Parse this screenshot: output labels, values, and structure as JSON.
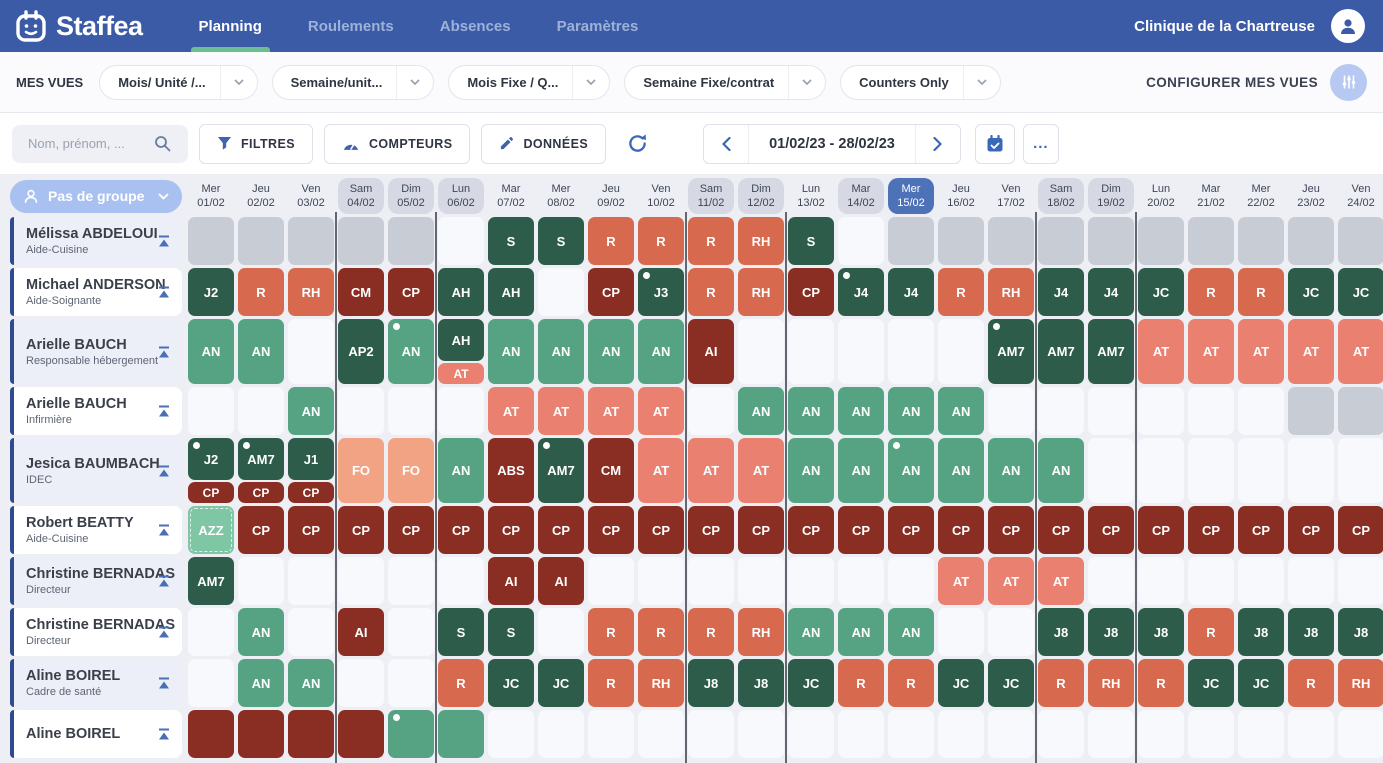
{
  "nav": {
    "brand": "Staffea",
    "items": [
      {
        "label": "Planning",
        "active": true
      },
      {
        "label": "Roulements",
        "active": false
      },
      {
        "label": "Absences",
        "active": false
      },
      {
        "label": "Paramètres",
        "active": false
      }
    ],
    "clinic": "Clinique de la Chartreuse"
  },
  "views_bar": {
    "label": "MES VUES",
    "views": [
      "Mois/ Unité /...",
      "Semaine/unit...",
      "Mois Fixe / Q...",
      "Semaine Fixe/contrat",
      "Counters Only"
    ],
    "configure_label": "CONFIGURER MES VUES"
  },
  "toolbar": {
    "search_placeholder": "Nom, prénom, ...",
    "filters_label": "FILTRES",
    "counters_label": "COMPTEURS",
    "data_label": "DONNÉES",
    "date_range": "01/02/23 - 28/02/23",
    "more_label": "..."
  },
  "group_selector": {
    "label": "Pas de groupe"
  },
  "colors": {
    "dg": "#2e5c4b",
    "mg": "#55a382",
    "lg": "#7fc6a4",
    "sal": "#d7694f",
    "lsal": "#e98070",
    "mar": "#8a2d22",
    "peach": "#f1a384",
    "gray": "#c8ccd5",
    "accent_blue": "#3b5ba7",
    "active_green": "#6cbe92",
    "today_blue": "#4e72b7"
  },
  "separators": [
    4,
    6,
    11,
    13,
    18,
    20
  ],
  "days": [
    {
      "d": "Mer",
      "n": "01/02"
    },
    {
      "d": "Jeu",
      "n": "02/02"
    },
    {
      "d": "Ven",
      "n": "03/02"
    },
    {
      "d": "Sam",
      "n": "04/02",
      "off": true
    },
    {
      "d": "Dim",
      "n": "05/02",
      "off": true
    },
    {
      "d": "Lun",
      "n": "06/02",
      "off": true
    },
    {
      "d": "Mar",
      "n": "07/02"
    },
    {
      "d": "Mer",
      "n": "08/02"
    },
    {
      "d": "Jeu",
      "n": "09/02"
    },
    {
      "d": "Ven",
      "n": "10/02"
    },
    {
      "d": "Sam",
      "n": "11/02",
      "off": true
    },
    {
      "d": "Dim",
      "n": "12/02",
      "off": true
    },
    {
      "d": "Lun",
      "n": "13/02"
    },
    {
      "d": "Mar",
      "n": "14/02",
      "off": true
    },
    {
      "d": "Mer",
      "n": "15/02",
      "today": true
    },
    {
      "d": "Jeu",
      "n": "16/02"
    },
    {
      "d": "Ven",
      "n": "17/02"
    },
    {
      "d": "Sam",
      "n": "18/02",
      "off": true
    },
    {
      "d": "Dim",
      "n": "19/02",
      "off": true
    },
    {
      "d": "Lun",
      "n": "20/02"
    },
    {
      "d": "Mar",
      "n": "21/02"
    },
    {
      "d": "Mer",
      "n": "22/02"
    },
    {
      "d": "Jeu",
      "n": "23/02"
    },
    {
      "d": "Ven",
      "n": "24/02"
    }
  ],
  "employees": [
    {
      "name": "Mélissa ABDELOUI",
      "role": "Aide-Cuisine",
      "tall": false,
      "cells": [
        {
          "k": "gray"
        },
        {
          "k": "gray"
        },
        {
          "k": "gray"
        },
        {
          "k": "gray"
        },
        {
          "k": "gray"
        },
        null,
        {
          "c": "S",
          "k": "dg"
        },
        {
          "c": "S",
          "k": "dg"
        },
        {
          "c": "R",
          "k": "sal"
        },
        {
          "c": "R",
          "k": "sal"
        },
        {
          "c": "R",
          "k": "sal"
        },
        {
          "c": "RH",
          "k": "sal"
        },
        {
          "c": "S",
          "k": "dg"
        },
        null,
        {
          "k": "gray"
        },
        {
          "k": "gray"
        },
        {
          "k": "gray"
        },
        {
          "k": "gray"
        },
        {
          "k": "gray"
        },
        {
          "k": "gray"
        },
        {
          "k": "gray"
        },
        {
          "k": "gray"
        },
        {
          "k": "gray"
        },
        {
          "k": "gray"
        }
      ]
    },
    {
      "name": "Michael ANDERSON",
      "role": "Aide-Soignante",
      "tall": false,
      "cells": [
        {
          "c": "J2",
          "k": "dg"
        },
        {
          "c": "R",
          "k": "sal"
        },
        {
          "c": "RH",
          "k": "sal"
        },
        {
          "c": "CM",
          "k": "mar"
        },
        {
          "c": "CP",
          "k": "mar"
        },
        {
          "c": "AH",
          "k": "dg"
        },
        {
          "c": "AH",
          "k": "dg"
        },
        null,
        {
          "c": "CP",
          "k": "mar"
        },
        {
          "c": "J3",
          "k": "dg",
          "dot": true
        },
        {
          "c": "R",
          "k": "sal"
        },
        {
          "c": "RH",
          "k": "sal"
        },
        {
          "c": "CP",
          "k": "mar"
        },
        {
          "c": "J4",
          "k": "dg",
          "dot": true
        },
        {
          "c": "J4",
          "k": "dg"
        },
        {
          "c": "R",
          "k": "sal"
        },
        {
          "c": "RH",
          "k": "sal"
        },
        {
          "c": "J4",
          "k": "dg"
        },
        {
          "c": "J4",
          "k": "dg"
        },
        {
          "c": "JC",
          "k": "dg"
        },
        {
          "c": "R",
          "k": "sal"
        },
        {
          "c": "R",
          "k": "sal"
        },
        {
          "c": "JC",
          "k": "dg"
        },
        {
          "c": "JC",
          "k": "dg"
        }
      ]
    },
    {
      "name": "Arielle BAUCH",
      "role": "Responsable hébergement",
      "tall": true,
      "cells": [
        {
          "c": "AN",
          "k": "mg"
        },
        {
          "c": "AN",
          "k": "mg"
        },
        null,
        {
          "c": "AP2",
          "k": "dg"
        },
        {
          "c": "AN",
          "k": "mg",
          "dot": true
        },
        {
          "c": "AH",
          "k": "dg",
          "sub": {
            "c": "AT",
            "k": "lsal"
          }
        },
        {
          "c": "AN",
          "k": "mg"
        },
        {
          "c": "AN",
          "k": "mg"
        },
        {
          "c": "AN",
          "k": "mg"
        },
        {
          "c": "AN",
          "k": "mg"
        },
        {
          "c": "AI",
          "k": "mar"
        },
        null,
        null,
        null,
        null,
        null,
        {
          "c": "AM7",
          "k": "dg",
          "dot": true
        },
        {
          "c": "AM7",
          "k": "dg"
        },
        {
          "c": "AM7",
          "k": "dg"
        },
        {
          "c": "AT",
          "k": "lsal"
        },
        {
          "c": "AT",
          "k": "lsal"
        },
        {
          "c": "AT",
          "k": "lsal"
        },
        {
          "c": "AT",
          "k": "lsal"
        },
        {
          "c": "AT",
          "k": "lsal"
        }
      ]
    },
    {
      "name": "Arielle BAUCH",
      "role": "Infirmière",
      "tall": false,
      "cells": [
        null,
        null,
        {
          "c": "AN",
          "k": "mg"
        },
        null,
        null,
        null,
        {
          "c": "AT",
          "k": "lsal"
        },
        {
          "c": "AT",
          "k": "lsal"
        },
        {
          "c": "AT",
          "k": "lsal"
        },
        {
          "c": "AT",
          "k": "lsal"
        },
        null,
        {
          "c": "AN",
          "k": "mg"
        },
        {
          "c": "AN",
          "k": "mg"
        },
        {
          "c": "AN",
          "k": "mg"
        },
        {
          "c": "AN",
          "k": "mg"
        },
        {
          "c": "AN",
          "k": "mg"
        },
        null,
        null,
        null,
        null,
        null,
        null,
        {
          "k": "gray"
        },
        {
          "k": "gray"
        }
      ]
    },
    {
      "name": "Jesica BAUMBACH",
      "role": "IDEC",
      "tall": true,
      "cells": [
        {
          "c": "J2",
          "k": "dg",
          "dot": true,
          "sub": {
            "c": "CP",
            "k": "mar"
          }
        },
        {
          "c": "AM7",
          "k": "dg",
          "dot": true,
          "sub": {
            "c": "CP",
            "k": "mar"
          }
        },
        {
          "c": "J1",
          "k": "dg",
          "sub": {
            "c": "CP",
            "k": "mar"
          }
        },
        {
          "c": "FO",
          "k": "peach"
        },
        {
          "c": "FO",
          "k": "peach"
        },
        {
          "c": "AN",
          "k": "mg"
        },
        {
          "c": "ABS",
          "k": "mar"
        },
        {
          "c": "AM7",
          "k": "dg",
          "dot": true
        },
        {
          "c": "CM",
          "k": "mar"
        },
        {
          "c": "AT",
          "k": "lsal"
        },
        {
          "c": "AT",
          "k": "lsal"
        },
        {
          "c": "AT",
          "k": "lsal"
        },
        {
          "c": "AN",
          "k": "mg"
        },
        {
          "c": "AN",
          "k": "mg"
        },
        {
          "c": "AN",
          "k": "mg",
          "dot": true
        },
        {
          "c": "AN",
          "k": "mg"
        },
        {
          "c": "AN",
          "k": "mg"
        },
        {
          "c": "AN",
          "k": "mg"
        },
        null,
        null,
        null,
        null,
        null,
        null
      ]
    },
    {
      "name": "Robert BEATTY",
      "role": "Aide-Cuisine",
      "tall": false,
      "cells": [
        {
          "c": "AZZ",
          "k": "lg",
          "dashed": true
        },
        {
          "c": "CP",
          "k": "mar"
        },
        {
          "c": "CP",
          "k": "mar"
        },
        {
          "c": "CP",
          "k": "mar"
        },
        {
          "c": "CP",
          "k": "mar"
        },
        {
          "c": "CP",
          "k": "mar"
        },
        {
          "c": "CP",
          "k": "mar"
        },
        {
          "c": "CP",
          "k": "mar"
        },
        {
          "c": "CP",
          "k": "mar"
        },
        {
          "c": "CP",
          "k": "mar"
        },
        {
          "c": "CP",
          "k": "mar"
        },
        {
          "c": "CP",
          "k": "mar"
        },
        {
          "c": "CP",
          "k": "mar"
        },
        {
          "c": "CP",
          "k": "mar"
        },
        {
          "c": "CP",
          "k": "mar"
        },
        {
          "c": "CP",
          "k": "mar"
        },
        {
          "c": "CP",
          "k": "mar"
        },
        {
          "c": "CP",
          "k": "mar"
        },
        {
          "c": "CP",
          "k": "mar"
        },
        {
          "c": "CP",
          "k": "mar"
        },
        {
          "c": "CP",
          "k": "mar"
        },
        {
          "c": "CP",
          "k": "mar"
        },
        {
          "c": "CP",
          "k": "mar"
        },
        {
          "c": "CP",
          "k": "mar"
        }
      ]
    },
    {
      "name": "Christine BERNADAS",
      "role": "Directeur",
      "tall": false,
      "cells": [
        {
          "c": "AM7",
          "k": "dg"
        },
        null,
        null,
        null,
        null,
        null,
        {
          "c": "AI",
          "k": "mar"
        },
        {
          "c": "AI",
          "k": "mar"
        },
        null,
        null,
        null,
        null,
        null,
        null,
        null,
        {
          "c": "AT",
          "k": "lsal"
        },
        {
          "c": "AT",
          "k": "lsal"
        },
        {
          "c": "AT",
          "k": "lsal"
        },
        null,
        null,
        null,
        null,
        null,
        null
      ]
    },
    {
      "name": "Christine BERNADAS",
      "role": "Directeur",
      "tall": false,
      "cells": [
        null,
        {
          "c": "AN",
          "k": "mg"
        },
        null,
        {
          "c": "AI",
          "k": "mar"
        },
        null,
        {
          "c": "S",
          "k": "dg"
        },
        {
          "c": "S",
          "k": "dg"
        },
        null,
        {
          "c": "R",
          "k": "sal"
        },
        {
          "c": "R",
          "k": "sal"
        },
        {
          "c": "R",
          "k": "sal"
        },
        {
          "c": "RH",
          "k": "sal"
        },
        {
          "c": "AN",
          "k": "mg"
        },
        {
          "c": "AN",
          "k": "mg"
        },
        {
          "c": "AN",
          "k": "mg"
        },
        null,
        null,
        {
          "c": "J8",
          "k": "dg"
        },
        {
          "c": "J8",
          "k": "dg"
        },
        {
          "c": "J8",
          "k": "dg"
        },
        {
          "c": "R",
          "k": "sal"
        },
        {
          "c": "J8",
          "k": "dg"
        },
        {
          "c": "J8",
          "k": "dg"
        },
        {
          "c": "J8",
          "k": "dg"
        }
      ]
    },
    {
      "name": "Aline BOIREL",
      "role": "Cadre de santé",
      "tall": false,
      "cells": [
        null,
        {
          "c": "AN",
          "k": "mg"
        },
        {
          "c": "AN",
          "k": "mg"
        },
        null,
        null,
        {
          "c": "R",
          "k": "sal"
        },
        {
          "c": "JC",
          "k": "dg"
        },
        {
          "c": "JC",
          "k": "dg"
        },
        {
          "c": "R",
          "k": "sal"
        },
        {
          "c": "RH",
          "k": "sal"
        },
        {
          "c": "J8",
          "k": "dg"
        },
        {
          "c": "J8",
          "k": "dg"
        },
        {
          "c": "JC",
          "k": "dg"
        },
        {
          "c": "R",
          "k": "sal"
        },
        {
          "c": "R",
          "k": "sal"
        },
        {
          "c": "JC",
          "k": "dg"
        },
        {
          "c": "JC",
          "k": "dg"
        },
        {
          "c": "R",
          "k": "sal"
        },
        {
          "c": "RH",
          "k": "sal"
        },
        {
          "c": "R",
          "k": "sal"
        },
        {
          "c": "JC",
          "k": "dg"
        },
        {
          "c": "JC",
          "k": "dg"
        },
        {
          "c": "R",
          "k": "sal"
        },
        {
          "c": "RH",
          "k": "sal"
        }
      ]
    },
    {
      "name": "Aline BOIREL",
      "role": "",
      "tall": false,
      "cells": [
        {
          "c": "",
          "k": "mar"
        },
        {
          "c": "",
          "k": "mar"
        },
        {
          "c": "",
          "k": "mar"
        },
        {
          "c": "",
          "k": "mar"
        },
        {
          "c": "",
          "k": "mg",
          "dot": true
        },
        {
          "c": "",
          "k": "mg"
        },
        null,
        null,
        null,
        null,
        null,
        null,
        null,
        null,
        null,
        null,
        null,
        null,
        null,
        null,
        null,
        null,
        null,
        null
      ]
    }
  ]
}
